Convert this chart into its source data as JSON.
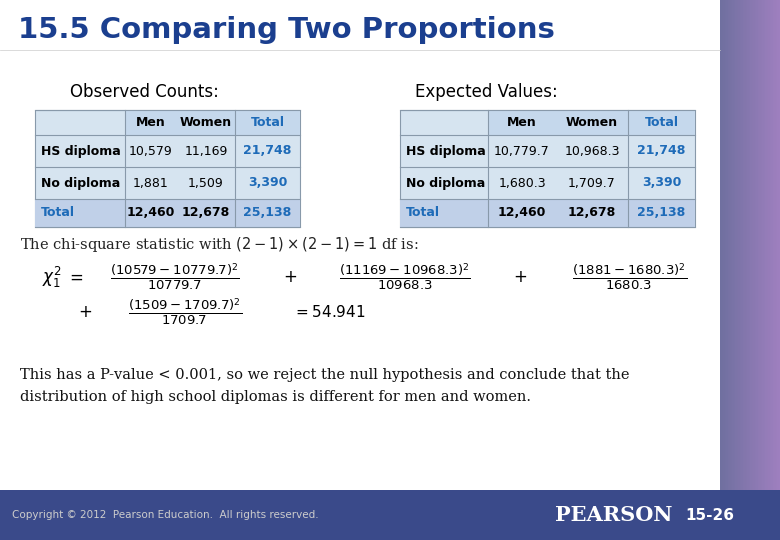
{
  "title": "15.5 Comparing Two Proportions",
  "title_color": "#1B3F8F",
  "bg_white": "#FFFFFF",
  "bg_right_strip": "#7B7FB5",
  "bg_footer": "#4A5A9A",
  "footer_text_color": "#CCCCCC",
  "obs_label": "Observed Counts:",
  "exp_label": "Expected Values:",
  "obs_table": {
    "headers": [
      "",
      "Men",
      "Women",
      "Total"
    ],
    "rows": [
      [
        "HS diploma",
        "10,579",
        "11,169",
        "21,748"
      ],
      [
        "No diploma",
        "1,881",
        "1,509",
        "3,390"
      ],
      [
        "Total",
        "12,460",
        "12,678",
        "25,138"
      ]
    ]
  },
  "exp_table": {
    "headers": [
      "",
      "Men",
      "Women",
      "Total"
    ],
    "rows": [
      [
        "HS diploma",
        "10,779.7",
        "10,968.3",
        "21,748"
      ],
      [
        "No diploma",
        "1,680.3",
        "1,709.7",
        "3,390"
      ],
      [
        "Total",
        "12,460",
        "12,678",
        "25,138"
      ]
    ]
  },
  "chi_text": "The chi-square statistic with $(2-1)\\times(2-1) = 1$ df is:",
  "conclusion_line1": "This has a P-value < 0.001, so we reject the null hypothesis and conclude that the",
  "conclusion_line2": "distribution of high school diplomas is different for men and women.",
  "copyright": "Copyright © 2012  Pearson Education.  All rights reserved.",
  "pearson": "PEARSON",
  "slide_num": "15-26",
  "table_bg": "#D6E4F0",
  "table_header_bg": "#C5D8EC",
  "table_total_bg": "#C0D0E8",
  "table_border": "#8899AA",
  "total_col_color": "#1E6BB8",
  "total_row_color": "#1E6BB8"
}
